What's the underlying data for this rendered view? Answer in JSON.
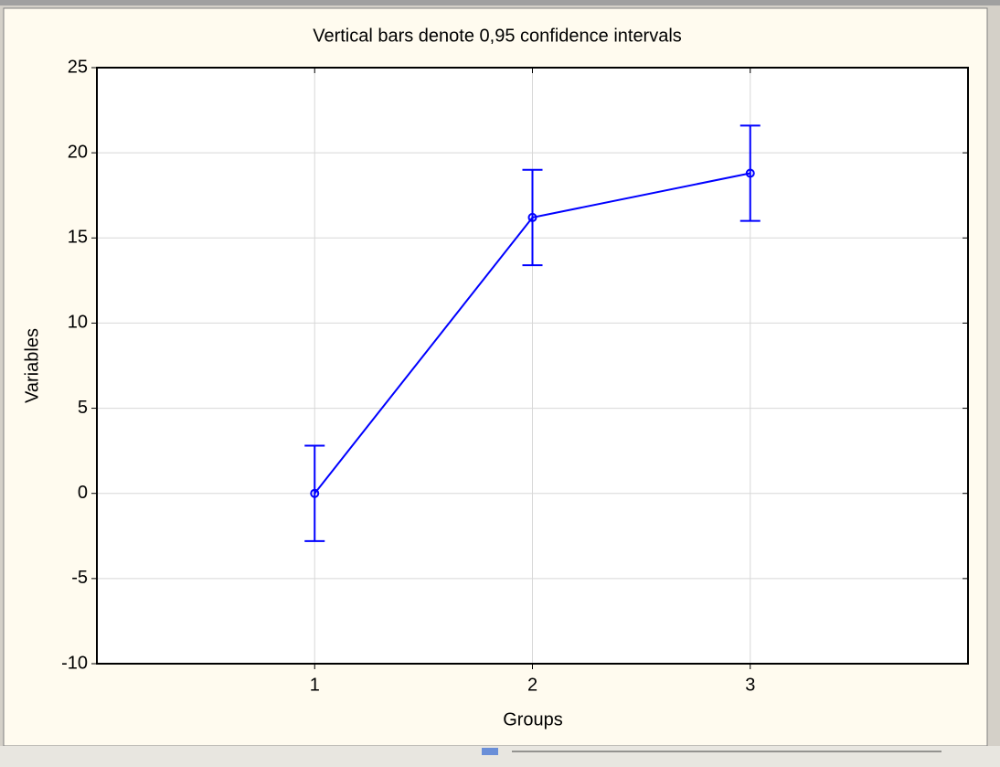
{
  "chart_data": {
    "type": "line",
    "title": "Vertical bars denote 0,95 confidence intervals",
    "x_label": "Groups",
    "y_label": "Variables",
    "x": [
      1,
      2,
      3
    ],
    "xlim": [
      0,
      4
    ],
    "xticks": [
      1,
      2,
      3
    ],
    "ylim": [
      -10,
      25
    ],
    "yticks": [
      -10,
      -5,
      0,
      5,
      10,
      15,
      20,
      25
    ],
    "grid": true,
    "series": [
      {
        "color": "#0000ff",
        "values": [
          0,
          16.2,
          18.8
        ],
        "errors": [
          2.8,
          2.8,
          2.8
        ]
      }
    ]
  }
}
